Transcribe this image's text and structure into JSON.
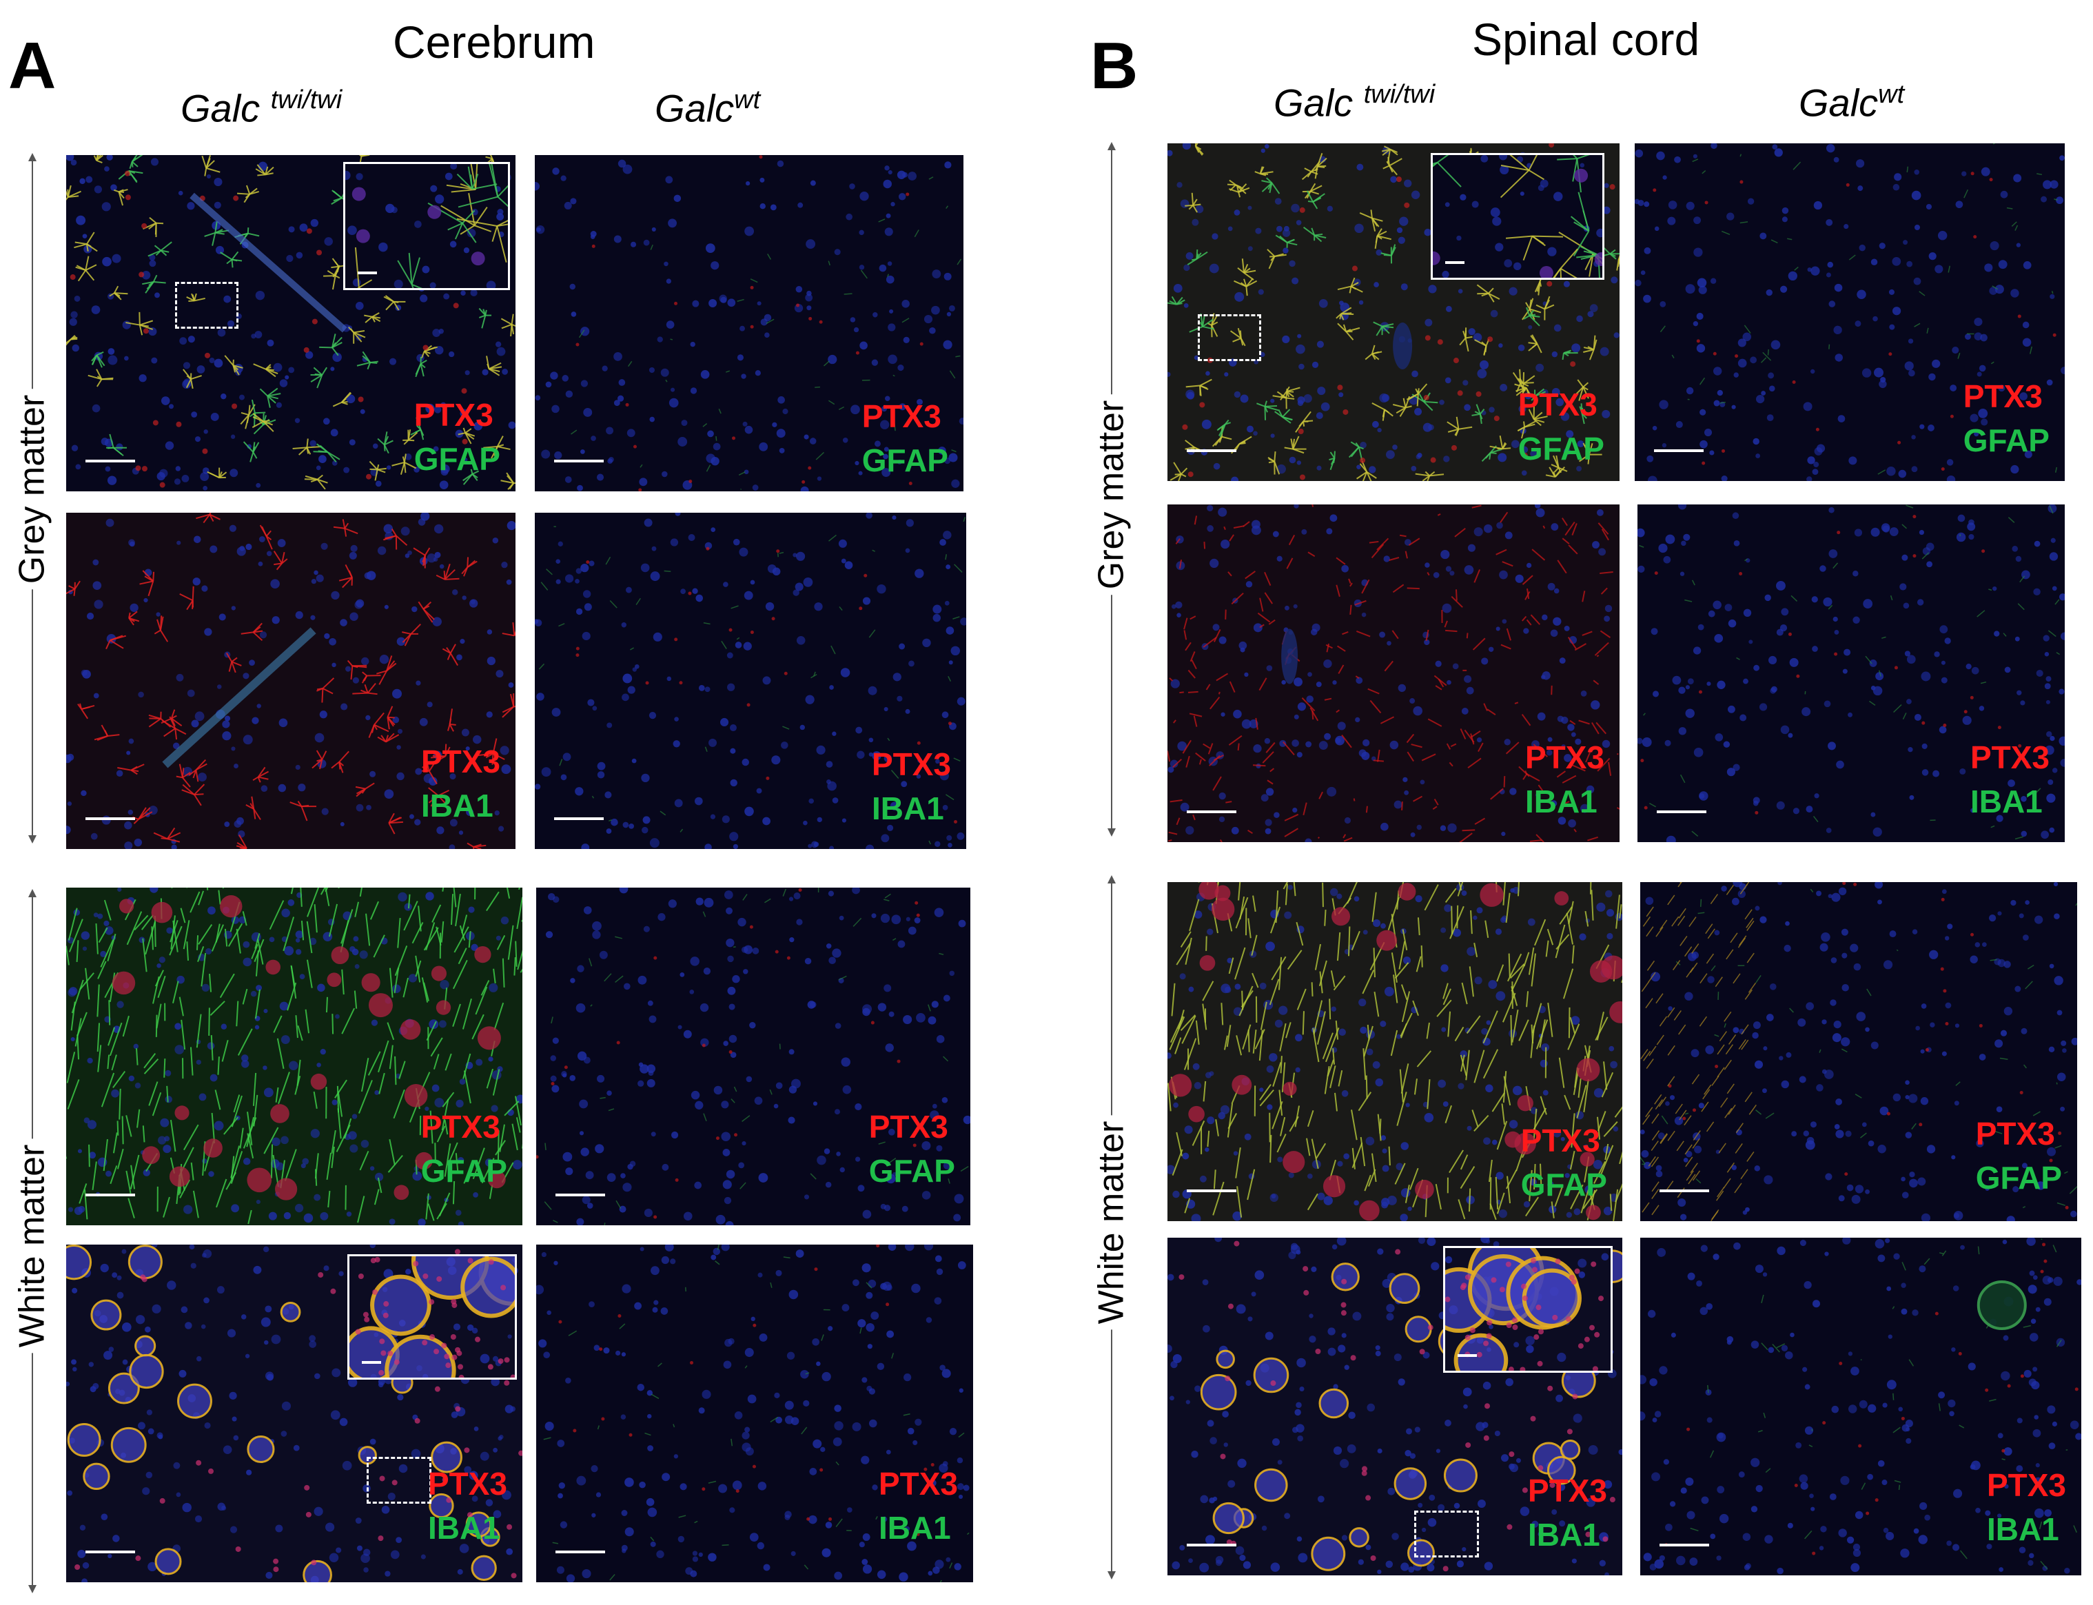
{
  "panels": [
    {
      "letter": "A",
      "title": "Cerebrum"
    },
    {
      "letter": "B",
      "title": "Spinal cord"
    }
  ],
  "genotypes": {
    "mutant_base": "Galc",
    "mutant_sup": "twi/twi",
    "wildtype_base": "Galc",
    "wildtype_sup": "wt"
  },
  "row_groups": {
    "grey": "Grey matter",
    "white": "White matter"
  },
  "stains": {
    "marker_red": "PTX3",
    "marker_gfap": "GFAP",
    "marker_iba1": "IBA1"
  },
  "colors": {
    "red_label": "#ff1a1a",
    "green_label": "#1fbf4a",
    "background_tissue": "#07071c"
  }
}
